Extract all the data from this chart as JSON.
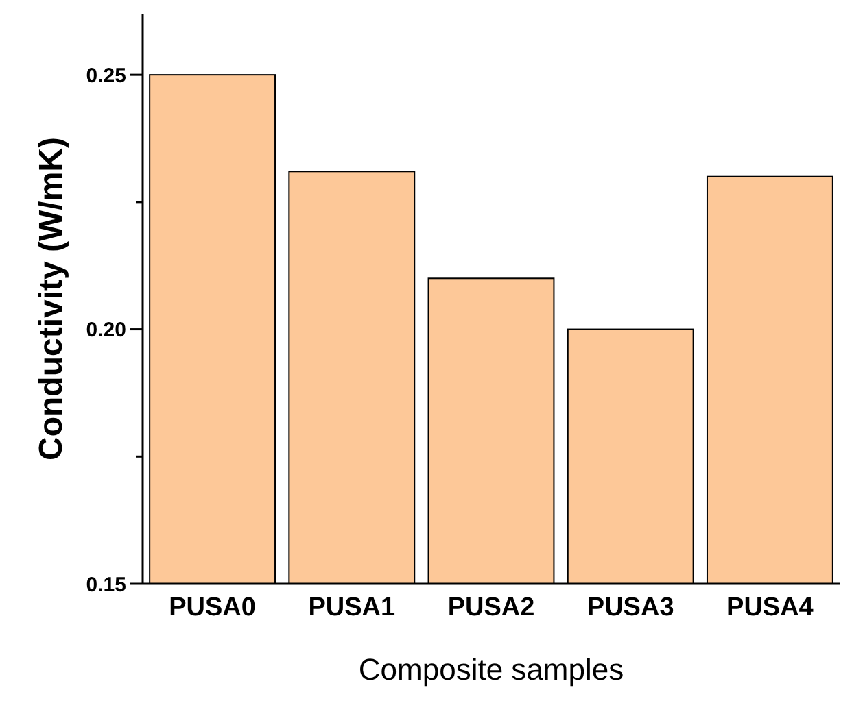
{
  "chart_data": {
    "type": "bar",
    "xlabel": "Composite samples",
    "ylabel": "Conductivity (W/mK)",
    "categories": [
      "PUSA0",
      "PUSA1",
      "PUSA2",
      "PUSA3",
      "PUSA4"
    ],
    "values": [
      0.25,
      0.231,
      0.21,
      0.2,
      0.23
    ],
    "color": "#fdc898",
    "ylim": [
      0.15,
      0.262
    ],
    "yticks": [
      {
        "value": 0.15,
        "label": "0.15"
      },
      {
        "value": 0.175,
        "label": null
      },
      {
        "value": 0.2,
        "label": "0.20"
      },
      {
        "value": 0.225,
        "label": null
      },
      {
        "value": 0.25,
        "label": "0.25"
      }
    ]
  }
}
